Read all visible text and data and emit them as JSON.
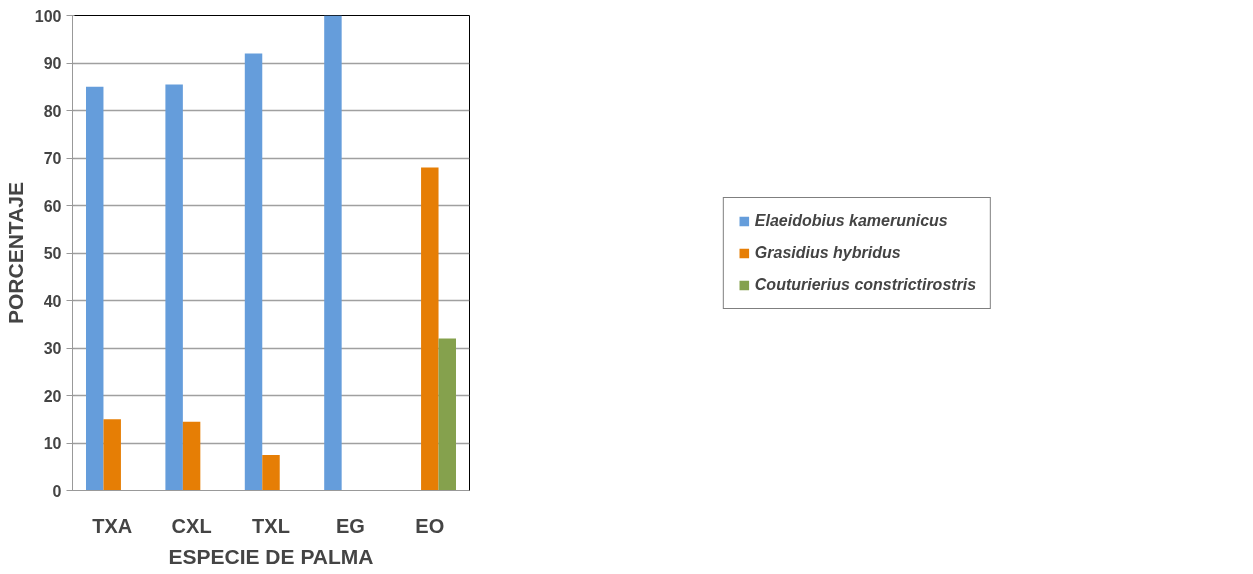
{
  "chart_data": {
    "type": "bar",
    "xlabel": "ESPECIE DE PALMA",
    "ylabel": "PORCENTAJE",
    "categories": [
      "TXA",
      "CXL",
      "TXL",
      "EG",
      "EO"
    ],
    "series": [
      {
        "name": "Elaeidobius kamerunicus",
        "color": "#659ddb",
        "values": [
          85,
          85.5,
          92,
          100,
          0
        ]
      },
      {
        "name": "Grasidius hybridus",
        "color": "#e67e05",
        "values": [
          15,
          14.5,
          7.5,
          0,
          68
        ]
      },
      {
        "name": "Couturierius constrictirostris",
        "color": "#85a14d",
        "values": [
          0,
          0,
          0,
          0,
          32
        ]
      }
    ],
    "ylim": [
      0,
      100
    ],
    "yticks": [
      0,
      10,
      20,
      30,
      40,
      50,
      60,
      70,
      80,
      90,
      100
    ],
    "grid": "y",
    "legend": "right"
  }
}
